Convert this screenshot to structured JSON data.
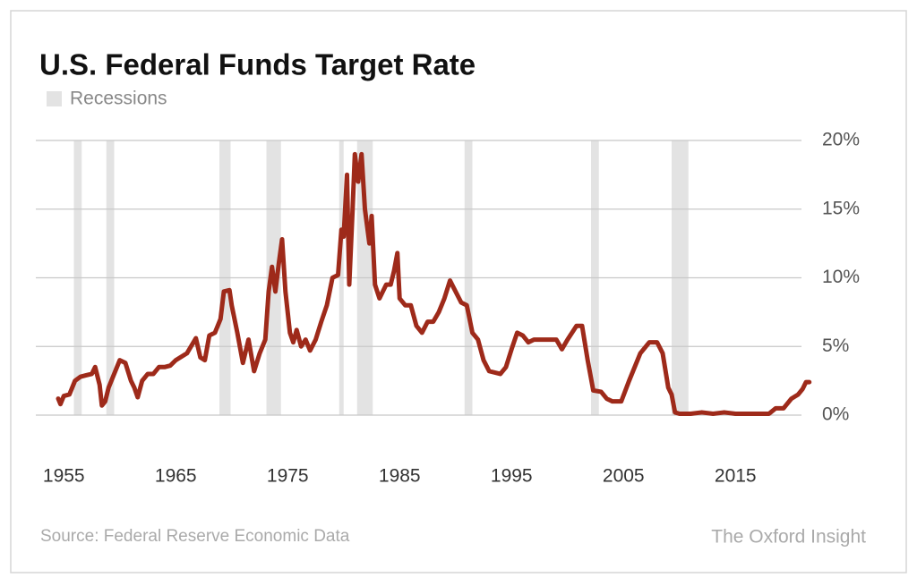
{
  "chart_data": {
    "type": "line",
    "title": "U.S. Federal Funds Target Rate",
    "legend_label": "Recessions",
    "source": "Source: Federal Reserve Economic Data",
    "brand": "The Oxford Insight",
    "recession_color": "#e3e3e3",
    "recessions": [
      [
        1955.9,
        1956.6
      ],
      [
        1958.8,
        1959.5
      ],
      [
        1968.9,
        1969.9
      ],
      [
        1973.1,
        1974.4
      ],
      [
        1979.6,
        1980.0
      ],
      [
        1981.2,
        1982.6
      ],
      [
        1990.8,
        1991.5
      ],
      [
        2002.1,
        2002.8
      ],
      [
        2009.3,
        2010.8
      ]
    ],
    "xlim": [
      1952.5,
      2021.7
    ],
    "xticks": [
      1955,
      1965,
      1975,
      1985,
      1995,
      2005,
      2015
    ],
    "ylim": [
      0,
      20
    ],
    "yticks": [
      {
        "value": 0,
        "label": "0%"
      },
      {
        "value": 5,
        "label": "5%"
      },
      {
        "value": 10,
        "label": "10%"
      },
      {
        "value": 15,
        "label": "15%"
      },
      {
        "value": 20,
        "label": "20%"
      }
    ],
    "grid": true,
    "x": [
      1954.5,
      1954.7,
      1955,
      1955.5,
      1956,
      1956.5,
      1957,
      1957.5,
      1957.8,
      1958.2,
      1958.4,
      1958.7,
      1959,
      1959.5,
      1960,
      1960.5,
      1961,
      1961.3,
      1961.6,
      1962,
      1962.5,
      1963,
      1963.5,
      1964,
      1964.5,
      1965,
      1966,
      1966.8,
      1967.2,
      1967.6,
      1968,
      1968.5,
      1969,
      1969.3,
      1969.8,
      1970,
      1970.5,
      1971,
      1971.5,
      1972,
      1972.5,
      1973,
      1973.3,
      1973.6,
      1973.9,
      1974.2,
      1974.5,
      1974.8,
      1975.2,
      1975.5,
      1975.8,
      1976.2,
      1976.6,
      1977,
      1977.5,
      1978,
      1978.5,
      1979,
      1979.5,
      1979.8,
      1980,
      1980.3,
      1980.5,
      1980.8,
      1981,
      1981.3,
      1981.6,
      1981.9,
      1982.3,
      1982.5,
      1982.8,
      1983.2,
      1983.8,
      1984.2,
      1984.5,
      1984.8,
      1985,
      1985.5,
      1986,
      1986.5,
      1987,
      1987.5,
      1988,
      1988.5,
      1989,
      1989.5,
      1990,
      1990.5,
      1991,
      1991.5,
      1992,
      1992.5,
      1993,
      1994,
      1994.5,
      1995,
      1995.5,
      1996,
      1996.5,
      1997,
      1998,
      1999,
      1999.5,
      2000,
      2000.8,
      2001.3,
      2001.8,
      2002.3,
      2003,
      2003.5,
      2004,
      2004.8,
      2005.5,
      2006.5,
      2007.3,
      2008,
      2008.5,
      2009,
      2009.3,
      2009.6,
      2010,
      2011,
      2012,
      2013,
      2014,
      2015,
      2016,
      2017,
      2018,
      2018.6,
      2019.3,
      2020,
      2020.6,
      2021,
      2021.3,
      2021.6
    ],
    "series": [
      {
        "name": "Federal Funds Target Rate",
        "color": "#9e2a1a",
        "values": [
          1.2,
          0.8,
          1.4,
          1.5,
          2.5,
          2.8,
          2.9,
          3.0,
          3.5,
          2.2,
          0.7,
          1.0,
          2.0,
          3.0,
          4.0,
          3.8,
          2.5,
          2.0,
          1.3,
          2.5,
          3.0,
          3.0,
          3.5,
          3.5,
          3.6,
          4.0,
          4.5,
          5.6,
          4.2,
          4.0,
          5.8,
          6.0,
          7.0,
          9.0,
          9.1,
          8.0,
          6.0,
          3.8,
          5.5,
          3.2,
          4.5,
          5.5,
          9.0,
          10.8,
          9.0,
          11.0,
          12.8,
          9.0,
          6.0,
          5.3,
          6.2,
          5.0,
          5.5,
          4.7,
          5.5,
          6.8,
          8.0,
          10.0,
          10.2,
          13.5,
          13.0,
          17.5,
          9.5,
          15.0,
          19.0,
          17.0,
          19.0,
          15.0,
          12.5,
          14.5,
          9.5,
          8.5,
          9.5,
          9.5,
          10.5,
          11.8,
          8.5,
          8.0,
          8.0,
          6.5,
          6.0,
          6.8,
          6.8,
          7.5,
          8.5,
          9.8,
          9.0,
          8.2,
          8.0,
          6.0,
          5.5,
          4.0,
          3.2,
          3.0,
          3.5,
          4.8,
          6.0,
          5.8,
          5.3,
          5.5,
          5.5,
          5.5,
          4.8,
          5.5,
          6.5,
          6.5,
          4.0,
          1.8,
          1.7,
          1.2,
          1.0,
          1.0,
          2.5,
          4.5,
          5.3,
          5.3,
          4.5,
          2.0,
          1.5,
          0.2,
          0.1,
          0.1,
          0.2,
          0.1,
          0.2,
          0.1,
          0.1,
          0.1,
          0.1,
          0.5,
          0.5,
          1.2,
          1.5,
          1.9,
          2.4,
          2.4
        ]
      }
    ]
  }
}
